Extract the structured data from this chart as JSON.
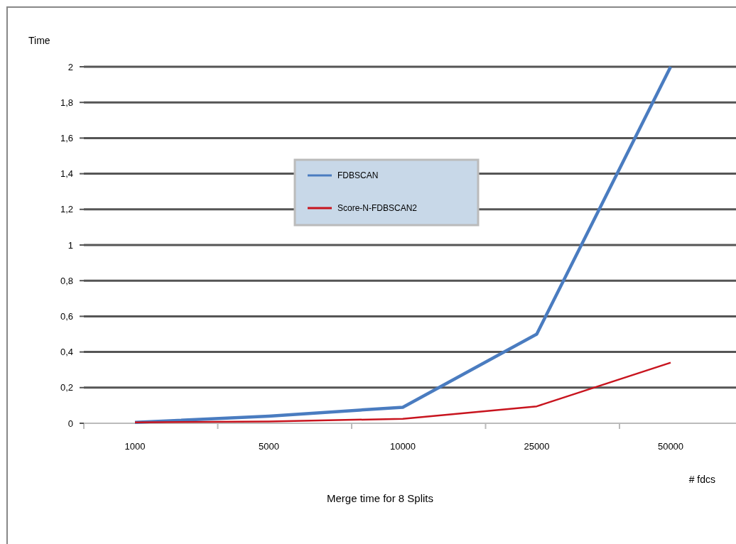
{
  "chart_data": {
    "type": "line",
    "title": "Merge time for 8 Splits",
    "xlabel": "# fdcs",
    "ylabel": "Time",
    "categories": [
      "1000",
      "5000",
      "10000",
      "25000",
      "50000"
    ],
    "series": [
      {
        "name": "FDBSCAN",
        "color": "#4a7cc0",
        "values": [
          0.005,
          0.04,
          0.09,
          0.5,
          2.0
        ]
      },
      {
        "name": "Score-N-FDBSCAN2",
        "color": "#c8141e",
        "values": [
          0.005,
          0.01,
          0.025,
          0.095,
          0.34
        ]
      }
    ],
    "ylim": [
      0,
      2
    ],
    "yticks": [
      0,
      {
        "value": 0.2,
        "label": "0,2"
      },
      {
        "value": 0.4,
        "label": "0,4"
      },
      {
        "value": 0.6,
        "label": "0,6"
      },
      {
        "value": 0.8,
        "label": "0,8"
      },
      1,
      {
        "value": 1.2,
        "label": "1,2"
      },
      {
        "value": 1.4,
        "label": "1,4"
      },
      {
        "value": 1.6,
        "label": "1,6"
      },
      {
        "value": 1.8,
        "label": "1,8"
      },
      2
    ],
    "grid": "y",
    "legend": "top left",
    "marker": "none"
  }
}
